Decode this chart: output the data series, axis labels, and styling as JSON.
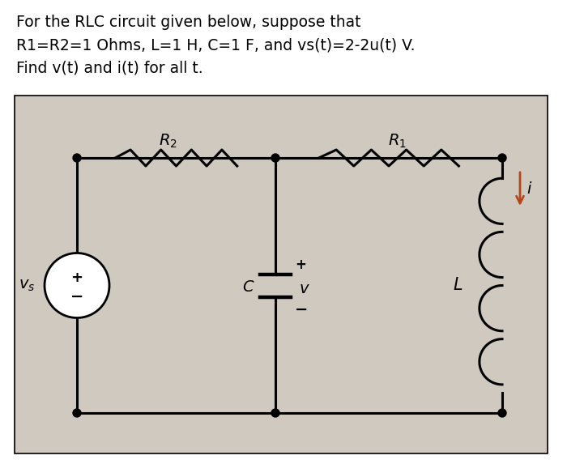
{
  "title_line1": "For the RLC circuit given below, suppose that",
  "title_line2": "R1=R2=1 Ohms, L=1 H, C=1 F, and vs(t)=2-2u(t) V.",
  "title_line3": "Find v(t) and i(t) for all t.",
  "bg_color": "#ffffff",
  "circuit_bg": "#cfc9c0",
  "circuit_border": "#000000",
  "wire_color": "#000000",
  "arrow_color": "#b5451b",
  "text_color": "#000000",
  "font_size_title": 13.5,
  "font_size_labels": 13
}
